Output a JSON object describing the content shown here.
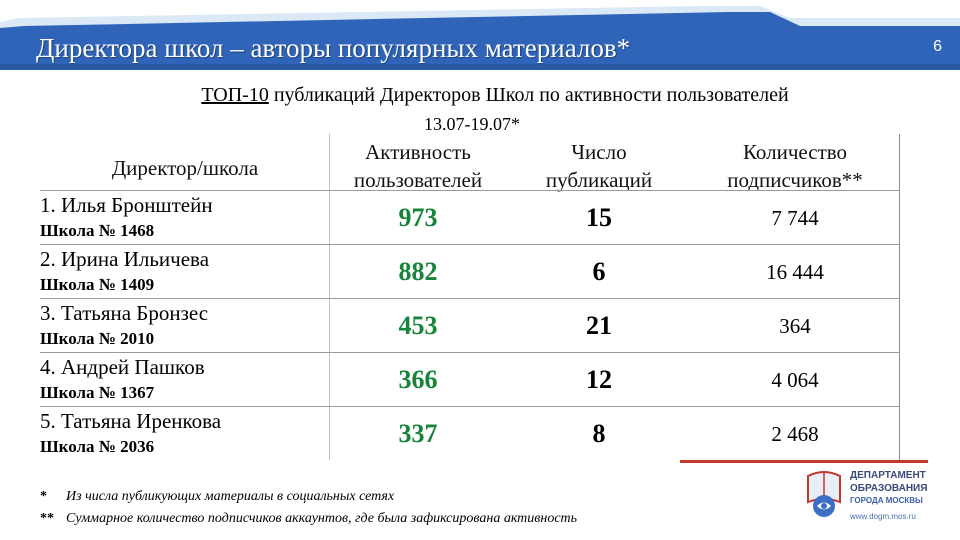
{
  "header": {
    "title": "Директора школ – авторы популярных материалов*",
    "page_number": "6"
  },
  "subtitle": {
    "prefix": "ТОП-10",
    "rest": " публикаций Директоров Школ по активности пользователей",
    "date_range": "13.07-19.07*"
  },
  "table": {
    "headers": {
      "director": "Директор/школа",
      "activity": "Активность пользователей",
      "count": "Число публикаций",
      "subscribers": "Количество подписчиков**"
    },
    "rows": [
      {
        "name": "1. Илья Бронштейн",
        "school": "Школа № 1468",
        "activity": "973",
        "count": "15",
        "subscribers": "7 744"
      },
      {
        "name": "2. Ирина Ильичева",
        "school": "Школа № 1409",
        "activity": "882",
        "count": "6",
        "subscribers": "16 444"
      },
      {
        "name": "3. Татьяна Бронзес",
        "school": "Школа № 2010",
        "activity": "453",
        "count": "21",
        "subscribers": "364"
      },
      {
        "name": "4. Андрей Пашков",
        "school": "Школа № 1367",
        "activity": "366",
        "count": "12",
        "subscribers": "4 064"
      },
      {
        "name": "5. Татьяна Иренкова",
        "school": "Школа № 2036",
        "activity": "337",
        "count": "8",
        "subscribers": "2 468"
      }
    ]
  },
  "footnotes": [
    {
      "mark": "*",
      "text": "Из числа публикующих материалы в социальных сетях"
    },
    {
      "mark": "**",
      "text": "Суммарное количество подписчиков аккаунтов, где была зафиксирована активность"
    }
  ],
  "logo": {
    "line1": "ДЕПАРТАМЕНТ",
    "line2": "ОБРАЗОВАНИЯ",
    "line3": "ГОРОДА МОСКВЫ",
    "site": "www.dogm.mos.ru",
    "icon": "moscow-education-emblem-icon"
  },
  "colors": {
    "header_blue": "#2f64b8",
    "activity_green": "#18843a",
    "accent_red": "#c0392b"
  }
}
